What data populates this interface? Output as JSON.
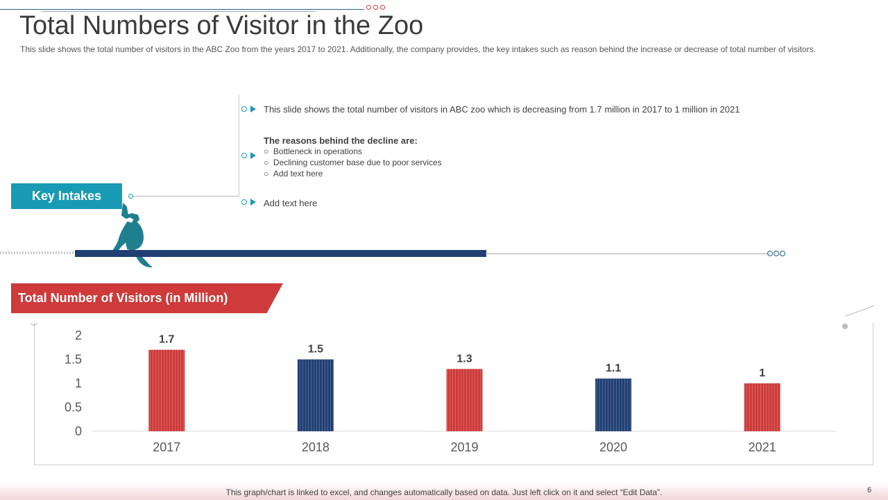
{
  "slide": {
    "title": "Total Numbers of Visitor in the Zoo",
    "subtitle": "This slide shows the total number of visitors in the ABC Zoo from the years 2017 to 2021. Additionally, the company provides,  the key intakes such as reason behind the increase or decrease of total number of visitors.",
    "page_number": "6",
    "footer_note": "This graph/chart is linked to excel, and changes automatically based on data. Just left click on it and select “Edit Data”."
  },
  "key_intakes": {
    "label": "Key Intakes",
    "point1": "This slide shows the total number of visitors in ABC zoo which is decreasing from 1.7 million in 2017 to 1 million in 2021",
    "reasons_heading": "The reasons behind the decline are:",
    "reasons": [
      "Bottleneck in operations",
      "Declining customer base due to poor services",
      "Add text here"
    ],
    "point3": "Add text here"
  },
  "chart_banner": "Total Number of Visitors  (in Million)",
  "colors": {
    "red": "#cf3a3a",
    "navy": "#203f73",
    "teal": "#1a9bb5"
  },
  "chart_data": {
    "type": "bar",
    "categories": [
      "2017",
      "2018",
      "2019",
      "2020",
      "2021"
    ],
    "values": [
      1.7,
      1.5,
      1.3,
      1.1,
      1
    ],
    "data_labels": [
      "1.7",
      "1.5",
      "1.3",
      "1.1",
      "1"
    ],
    "bar_colors": [
      "#cf3a3a",
      "#203f73",
      "#cf3a3a",
      "#203f73",
      "#cf3a3a"
    ],
    "ylim": [
      0,
      2
    ],
    "yticks": [
      "0",
      "0.5",
      "1",
      "1.5",
      "2"
    ],
    "title": "",
    "xlabel": "",
    "ylabel": "",
    "grid": false
  }
}
